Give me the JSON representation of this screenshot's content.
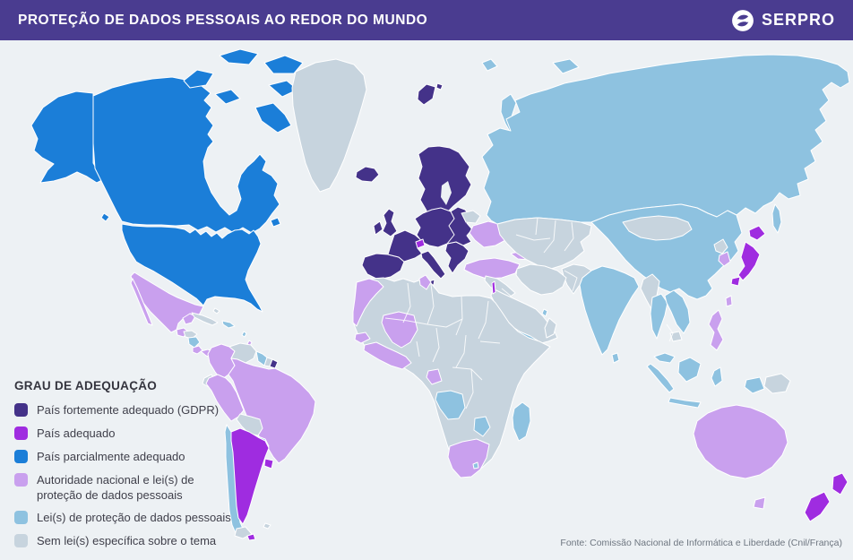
{
  "header": {
    "title": "PROTEÇÃO DE DADOS PESSOAIS AO REDOR DO MUNDO",
    "brand": "SERPRO"
  },
  "theme": {
    "header": "#4a3c90",
    "ocean": "#edf1f4",
    "border": "#ffffff",
    "legend_title_color": "#34343e",
    "legend_text_color": "#3f3f4a",
    "footer_text_color": "#6e7680"
  },
  "legend": {
    "title": "GRAU DE ADEQUAÇÃO",
    "items": [
      {
        "id": "gdpr",
        "label": "País fortemente adequado (GDPR)",
        "color": "#443289"
      },
      {
        "id": "adequado",
        "label": "País adequado",
        "color": "#9f2ce0"
      },
      {
        "id": "parcial",
        "label": "País parcialmente adequado",
        "color": "#1b7ed8"
      },
      {
        "id": "autoridade",
        "label": "Autoridade nacional e lei(s) de proteção de dados pessoais",
        "color": "#c9a0ee"
      },
      {
        "id": "leis",
        "label": "Lei(s) de proteção de dados pessoais",
        "color": "#8ec2e0"
      },
      {
        "id": "semlei",
        "label": "Sem lei(s) específica sobre o tema",
        "color": "#c7d4de"
      }
    ]
  },
  "footer": {
    "source": "Fonte: Comissão Nacional de Informática e Liberdade (Cnil/França)"
  },
  "map": {
    "regions": {
      "alaska": "parcial",
      "canada": "parcial",
      "canada-arctic": "parcial",
      "newfoundland": "parcial",
      "vancouver-island": "parcial",
      "usa": "parcial",
      "greenland": "semlei",
      "iceland": "gdpr",
      "svalbard": "gdpr",
      "franz-josef": "leis",
      "novaya-zemlya": "leis",
      "severnaya": "leis",
      "mexico": "autoridade",
      "baja": "autoridade",
      "yucatan": "autoridade",
      "guatemala": "autoridade",
      "honduras": "semlei",
      "nicaragua": "leis",
      "costa-rica": "autoridade",
      "panama": "autoridade",
      "cuba": "semlei",
      "hispaniola": "leis",
      "bahamas": "semlei",
      "antilles-1": "leis",
      "antilles-2": "autoridade",
      "colombia": "autoridade",
      "venezuela": "semlei",
      "guyana": "leis",
      "suriname": "semlei",
      "french-guiana": "gdpr",
      "brazil": "autoridade",
      "ecuador": "semlei",
      "peru": "autoridade",
      "bolivia": "semlei",
      "paraguay": "leis",
      "chile": "leis",
      "chile-tip": "semlei",
      "tierra-del-fuego": "adequado",
      "argentina": "adequado",
      "uruguay": "adequado",
      "falklands": "semlei",
      "scandinavia": "gdpr",
      "denmark": "gdpr",
      "uk": "gdpr",
      "ireland": "gdpr",
      "iberia": "gdpr",
      "france": "gdpr",
      "central-europe": "gdpr",
      "italy": "gdpr",
      "sicily": "gdpr",
      "balkans": "gdpr",
      "poland-baltics": "gdpr",
      "switzerland": "adequado",
      "belarus": "semlei",
      "ukraine": "autoridade",
      "turkey": "autoridade",
      "caucasus": "autoridade",
      "russia": "leis",
      "sakhalin": "leis",
      "kazakhstan": "semlei",
      "china": "leis",
      "mongolia": "semlei",
      "north-korea": "semlei",
      "south-korea": "autoridade",
      "japan": "adequado",
      "taiwan": "autoridade",
      "philippines": "autoridade",
      "india": "leis",
      "sri-lanka": "leis",
      "pakistan-afghanistan": "semlei",
      "iran": "semlei",
      "levant": "semlei",
      "arabia": "semlei",
      "yemen": "leis",
      "oman": "semlei",
      "qatar": "leis",
      "israel": "adequado",
      "africa-base": "semlei",
      "morocco": "autoridade",
      "tunisia": "autoridade",
      "mali": "autoridade",
      "senegal": "autoridade",
      "west-africa": "autoridade",
      "gabon": "autoridade",
      "angola": "leis",
      "zimbabwe": "leis",
      "south-africa": "autoridade",
      "lesotho": "leis",
      "madagascar": "leis",
      "myanmar": "semlei",
      "thailand": "leis",
      "vietnam-laos": "leis",
      "cambodia": "semlei",
      "malaysia": "leis",
      "sumatra": "leis",
      "java": "leis",
      "borneo": "leis",
      "sulawesi": "leis",
      "west-papua": "leis",
      "png": "semlei",
      "australia": "autoridade",
      "tasmania": "autoridade",
      "nz-north": "adequado",
      "nz-south": "adequado"
    }
  }
}
